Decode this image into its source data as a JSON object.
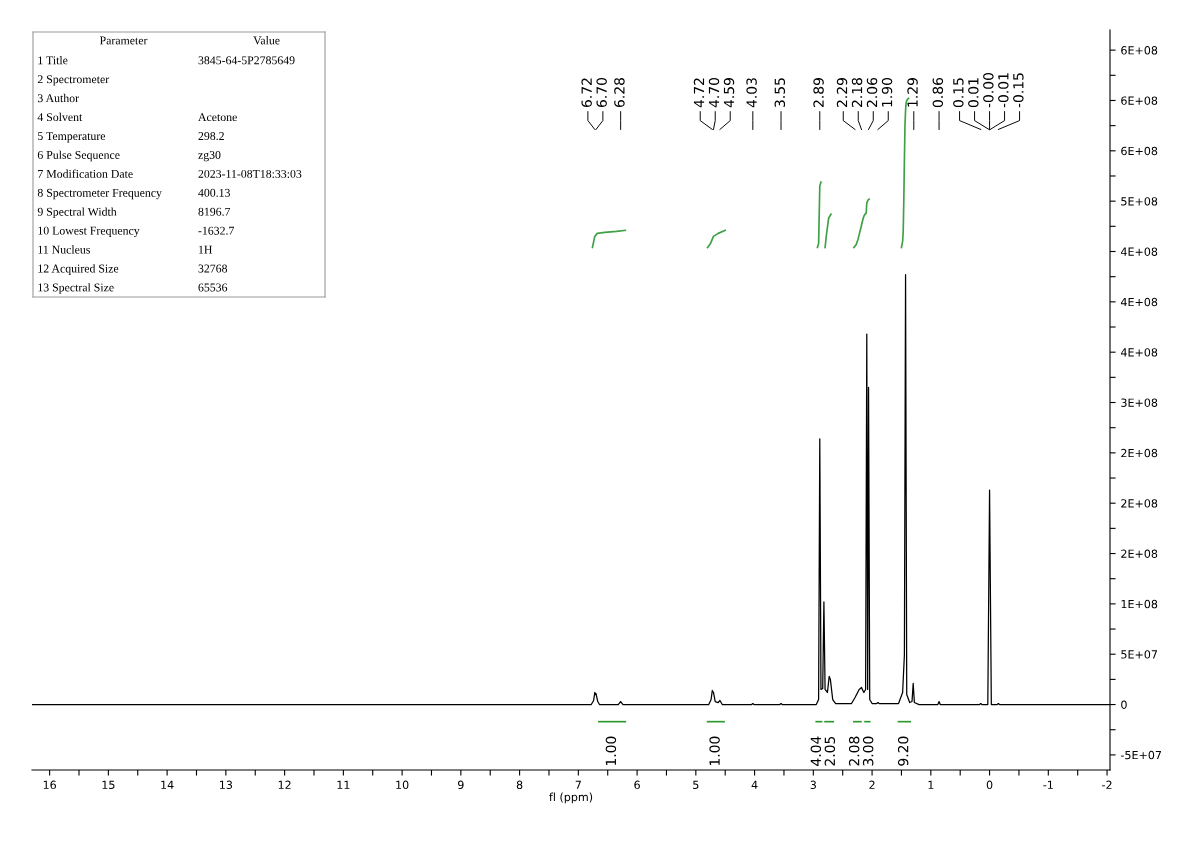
{
  "chart_data": [
    {
      "type": "line",
      "xlabel": "fl (ppm)",
      "xlim": [
        16.3,
        -2.05
      ],
      "ylim": [
        -65000000,
        670000000
      ],
      "xticks": [
        16,
        {
          "value": 15.5,
          "label": null
        },
        15,
        {
          "value": 14.5,
          "label": null
        },
        14,
        {
          "value": 13.5,
          "label": null
        },
        13,
        {
          "value": 12.5,
          "label": null
        },
        12,
        {
          "value": 11.5,
          "label": null
        },
        11,
        {
          "value": 10.5,
          "label": null
        },
        10,
        {
          "value": 9.5,
          "label": null
        },
        9,
        {
          "value": 8.5,
          "label": null
        },
        8,
        {
          "value": 7.5,
          "label": null
        },
        7,
        {
          "value": 6.5,
          "label": null
        },
        6,
        {
          "value": 5.5,
          "label": null
        },
        5,
        {
          "value": 4.5,
          "label": null
        },
        4,
        {
          "value": 3.5,
          "label": null
        },
        3,
        {
          "value": 2.5,
          "label": null
        },
        2,
        {
          "value": 1.5,
          "label": null
        },
        1,
        {
          "value": 0.5,
          "label": null
        },
        0,
        {
          "value": -0.5,
          "label": null
        },
        {
          "value": -1,
          "label": "-1"
        },
        {
          "value": -1.5,
          "label": null
        },
        {
          "value": -2,
          "label": "-2"
        }
      ],
      "yticks": [
        {
          "value": -50000000,
          "label": "-5E+07"
        },
        {
          "value": -25000000,
          "label": null
        },
        0,
        {
          "value": 25000000,
          "label": null
        },
        {
          "value": 50000000,
          "label": "5E+07"
        },
        {
          "value": 75000000,
          "label": null
        },
        {
          "value": 100000000,
          "label": "1E+08"
        },
        {
          "value": 125000000,
          "label": null
        },
        {
          "value": 150000000,
          "label": "2E+08"
        },
        {
          "value": 175000000,
          "label": null
        },
        {
          "value": 200000000,
          "label": "2E+08"
        },
        {
          "value": 225000000,
          "label": null
        },
        {
          "value": 250000000,
          "label": "2E+08"
        },
        {
          "value": 275000000,
          "label": null
        },
        {
          "value": 300000000,
          "label": "3E+08"
        },
        {
          "value": 325000000,
          "label": null
        },
        {
          "value": 350000000,
          "label": "4E+08"
        },
        {
          "value": 375000000,
          "label": null
        },
        {
          "value": 400000000,
          "label": "4E+08"
        },
        {
          "value": 425000000,
          "label": null
        },
        {
          "value": 450000000,
          "label": "4E+08"
        },
        {
          "value": 475000000,
          "label": null
        },
        {
          "value": 500000000,
          "label": "5E+08"
        },
        {
          "value": 525000000,
          "label": null
        },
        {
          "value": 550000000,
          "label": "6E+08"
        },
        {
          "value": 575000000,
          "label": null
        },
        {
          "value": 600000000,
          "label": "6E+08"
        },
        {
          "value": 625000000,
          "label": null
        },
        {
          "value": 650000000,
          "label": "6E+08"
        }
      ],
      "grid": false,
      "legend": false,
      "marker": "none",
      "line_style": "solid",
      "series": [
        {
          "color": "#000000",
          "x": [
            16.3,
            6.78,
            6.74,
            6.72,
            6.71,
            6.7,
            6.67,
            6.64,
            6.32,
            6.28,
            6.24,
            4.78,
            4.74,
            4.72,
            4.7,
            4.67,
            4.62,
            4.59,
            4.55,
            4.05,
            4.03,
            4.01,
            3.57,
            3.55,
            3.53,
            2.95,
            2.91,
            2.89,
            2.87,
            2.84,
            2.82,
            2.8,
            2.76,
            2.73,
            2.71,
            2.67,
            2.62,
            2.35,
            2.29,
            2.22,
            2.18,
            2.14,
            2.11,
            2.09,
            2.075,
            2.06,
            2.04,
            2.0,
            1.92,
            1.9,
            1.88,
            1.55,
            1.48,
            1.45,
            1.43,
            1.41,
            1.36,
            1.32,
            1.3,
            1.28,
            1.2,
            0.88,
            0.86,
            0.84,
            0.17,
            0.15,
            0.13,
            0.03,
            0.0,
            -0.03,
            -0.13,
            -0.15,
            -0.17,
            -2.05
          ],
          "values": [
            0,
            0,
            4000000,
            12000000,
            10000000,
            11000000,
            3000000,
            0,
            0,
            3000000,
            0,
            0,
            5000000,
            14000000,
            12000000,
            3000000,
            2000000,
            4000000,
            0,
            0,
            1000000,
            0,
            0,
            1000000,
            0,
            0,
            5000000,
            264000000,
            15000000,
            16000000,
            102000000,
            15000000,
            12000000,
            28000000,
            25000000,
            5000000,
            1000000,
            1000000,
            7000000,
            15000000,
            17000000,
            12000000,
            15000000,
            368000000,
            15000000,
            315000000,
            5000000,
            1000000,
            1000000,
            2000000,
            1000000,
            1000000,
            12000000,
            49000000,
            427000000,
            10000000,
            2000000,
            3000000,
            21000000,
            2000000,
            0,
            0,
            3000000,
            0,
            0,
            1000000,
            0,
            0,
            213000000,
            0,
            0,
            1000000,
            0,
            0
          ]
        },
        {
          "color": "#2e9a2e",
          "x": [
            6.65,
            6.2
          ],
          "values": [
            -17000000,
            -17000000
          ]
        },
        {
          "color": "#2e9a2e",
          "x": [
            4.8,
            4.52
          ],
          "values": [
            -17000000,
            -17000000
          ]
        },
        {
          "color": "#2e9a2e",
          "x": [
            2.95,
            2.86
          ],
          "values": [
            -17000000,
            -17000000
          ]
        },
        {
          "color": "#2e9a2e",
          "x": [
            2.8,
            2.66
          ],
          "values": [
            -17000000,
            -17000000
          ]
        },
        {
          "color": "#2e9a2e",
          "x": [
            2.31,
            2.19
          ],
          "values": [
            -17000000,
            -17000000
          ]
        },
        {
          "color": "#2e9a2e",
          "x": [
            2.12,
            2.04
          ],
          "values": [
            -17000000,
            -17000000
          ]
        },
        {
          "color": "#2e9a2e",
          "x": [
            1.55,
            1.35
          ],
          "values": [
            -17000000,
            -17000000
          ]
        },
        {
          "color": "#3fa046",
          "x": [
            6.76,
            6.72,
            6.68,
            6.55,
            6.35,
            6.2
          ],
          "values": [
            454000000,
            465000000,
            468000000,
            469000000,
            470000000,
            471000000
          ]
        },
        {
          "color": "#3fa046",
          "x": [
            4.8,
            4.75,
            4.7,
            4.62,
            4.5
          ],
          "values": [
            454000000,
            458000000,
            465000000,
            468000000,
            471000000
          ]
        },
        {
          "color": "#3fa046",
          "x": [
            2.93,
            2.91,
            2.89,
            2.87
          ],
          "values": [
            454000000,
            458000000,
            515000000,
            519000000
          ]
        },
        {
          "color": "#3fa046",
          "x": [
            2.8,
            2.78,
            2.74,
            2.7
          ],
          "values": [
            454000000,
            465000000,
            483000000,
            487000000
          ]
        },
        {
          "color": "#3fa046",
          "x": [
            2.31,
            2.27,
            2.24,
            2.21,
            2.18,
            2.16,
            2.14,
            2.12,
            2.1,
            2.09,
            2.07,
            2.05
          ],
          "values": [
            454000000,
            457000000,
            462000000,
            469000000,
            476000000,
            481000000,
            485000000,
            487000000,
            488000000,
            498000000,
            501000000,
            502000000
          ]
        },
        {
          "color": "#3fa046",
          "x": [
            1.5,
            1.48,
            1.47,
            1.46,
            1.45,
            1.44,
            1.43,
            1.42,
            1.4,
            1.38
          ],
          "values": [
            454000000,
            460000000,
            470000000,
            500000000,
            540000000,
            575000000,
            590000000,
            598000000,
            601000000,
            602000000
          ]
        }
      ],
      "annotations": [
        "6.72",
        "6.70",
        "6.28",
        "4.72",
        "4.70",
        "4.59",
        "4.03",
        "3.55",
        "2.89",
        "2.29",
        "2.18",
        "2.06",
        "1.90",
        "1.29",
        "0.86",
        "0.15",
        "0.01",
        "-0.00",
        "-0.01",
        "-0.15",
        {
          "text": "1.00",
          "x": 6.425,
          "y": -17000000
        },
        {
          "text": "1.00",
          "x": 4.66,
          "y": -17000000
        },
        {
          "text": "4.04",
          "x": 2.905,
          "y": -17000000
        },
        {
          "text": "2.05",
          "x": 2.73,
          "y": -17000000
        },
        {
          "text": "2.08",
          "x": 2.25,
          "y": -17000000
        },
        {
          "text": "3.00",
          "x": 2.08,
          "y": -17000000
        },
        {
          "text": "9.20",
          "x": 1.45,
          "y": -17000000
        }
      ]
    },
    {
      "type": "other",
      "annotations": [
        "Parameter",
        "Value"
      ],
      "categories": [
        "1 Title",
        "2 Spectrometer",
        "3 Author",
        "4 Solvent",
        "5 Temperature",
        "6 Pulse Sequence",
        "7 Modification Date",
        "8 Spectrometer Frequency",
        "9 Spectral Width",
        "10 Lowest Frequency",
        "11 Nucleus",
        "12 Acquired Size",
        "13 Spectral Size"
      ],
      "value_labels": [
        "3845-64-5P2785649",
        null,
        null,
        "Acetone",
        "298.2",
        "zg30",
        "2023-11-08T18:33:03",
        "400.13",
        "8196.7",
        "-1632.7",
        "1H",
        "32768",
        "65536"
      ]
    }
  ]
}
